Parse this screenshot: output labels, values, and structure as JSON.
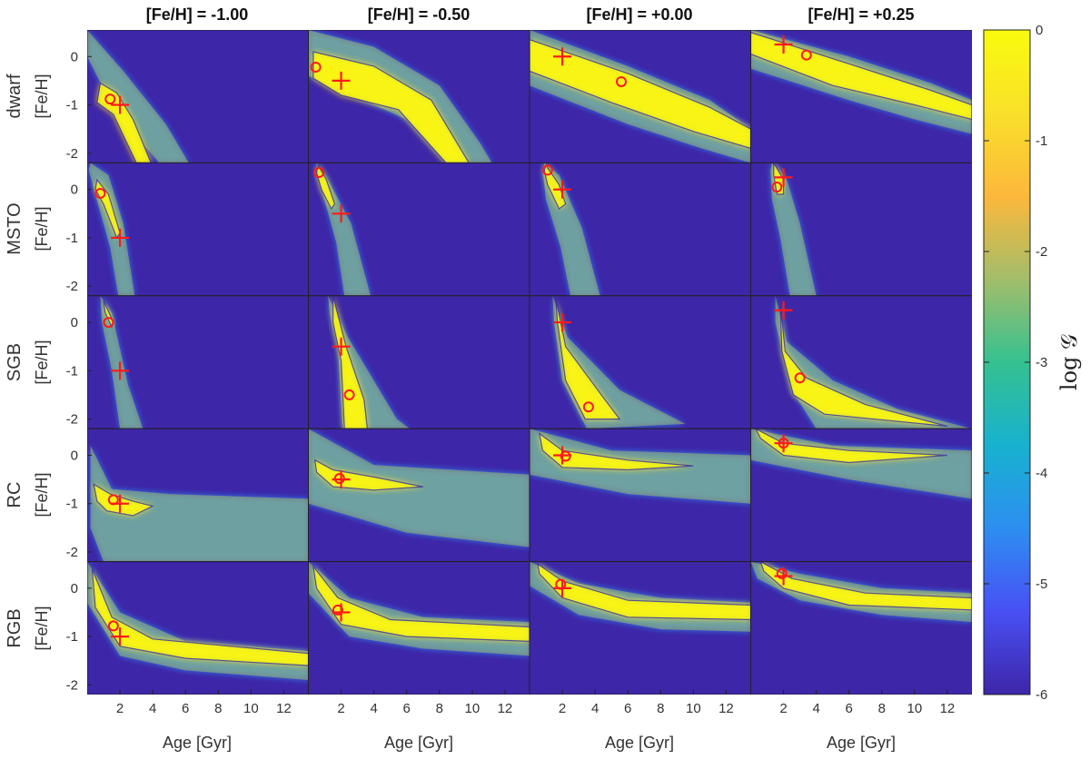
{
  "chart_data": {
    "type": "heatmap",
    "column_titles": [
      "[Fe/H] = -1.00",
      "[Fe/H] = -0.50",
      "[Fe/H] = +0.00",
      "[Fe/H] = +0.25"
    ],
    "row_labels": [
      "dwarf",
      "MSTO",
      "SGB",
      "RC",
      "RGB"
    ],
    "ylabel": "[Fe/H]",
    "xlabel": "Age [Gyr]",
    "xticks": [
      2,
      4,
      6,
      8,
      10,
      12
    ],
    "xlim": [
      0,
      13.5
    ],
    "yticks": [
      0,
      -1,
      -2
    ],
    "ylim": [
      -2.2,
      0.55
    ],
    "colorbar": {
      "label": "log 𝒢",
      "ticks": [
        0,
        -1,
        -2,
        -3,
        -4,
        -5,
        -6
      ],
      "range": [
        -6,
        0
      ],
      "colors": [
        "#3e26a8",
        "#4850f5",
        "#2d8ef0",
        "#18b1cf",
        "#35c190",
        "#a3bd6a",
        "#fcb83b",
        "#f9e02a",
        "#f9fb0e"
      ]
    },
    "marker_colors": {
      "true": "#ff1a1a",
      "estimate": "#ff1a1a",
      "contour": "#3c2c9a"
    },
    "panels": [
      {
        "row": "dwarf",
        "col": "[Fe/H] = -1.00",
        "true": [
          2.0,
          -1.0
        ],
        "estimate": [
          1.4,
          -0.88
        ]
      },
      {
        "row": "dwarf",
        "col": "[Fe/H] = -0.50",
        "true": [
          2.0,
          -0.5
        ],
        "estimate": [
          0.45,
          -0.22
        ]
      },
      {
        "row": "dwarf",
        "col": "[Fe/H] = +0.00",
        "true": [
          2.0,
          0.0
        ],
        "estimate": [
          5.6,
          -0.52
        ]
      },
      {
        "row": "dwarf",
        "col": "[Fe/H] = +0.25",
        "true": [
          2.0,
          0.25
        ],
        "estimate": [
          3.4,
          0.03
        ]
      },
      {
        "row": "MSTO",
        "col": "[Fe/H] = -1.00",
        "true": [
          2.0,
          -1.0
        ],
        "estimate": [
          0.8,
          -0.08
        ]
      },
      {
        "row": "MSTO",
        "col": "[Fe/H] = -0.50",
        "true": [
          2.0,
          -0.5
        ],
        "estimate": [
          0.65,
          0.35
        ]
      },
      {
        "row": "MSTO",
        "col": "[Fe/H] = +0.00",
        "true": [
          2.0,
          0.0
        ],
        "estimate": [
          1.1,
          0.4
        ]
      },
      {
        "row": "MSTO",
        "col": "[Fe/H] = +0.25",
        "true": [
          2.0,
          0.25
        ],
        "estimate": [
          1.6,
          0.05
        ]
      },
      {
        "row": "SGB",
        "col": "[Fe/H] = -1.00",
        "true": [
          2.0,
          -1.0
        ],
        "estimate": [
          1.3,
          0.0
        ]
      },
      {
        "row": "SGB",
        "col": "[Fe/H] = -0.50",
        "true": [
          2.0,
          -0.5
        ],
        "estimate": [
          2.5,
          -1.5
        ]
      },
      {
        "row": "SGB",
        "col": "[Fe/H] = +0.00",
        "true": [
          2.0,
          0.0
        ],
        "estimate": [
          3.6,
          -1.75
        ]
      },
      {
        "row": "SGB",
        "col": "[Fe/H] = +0.25",
        "true": [
          2.0,
          0.25
        ],
        "estimate": [
          3.0,
          -1.15
        ]
      },
      {
        "row": "RC",
        "col": "[Fe/H] = -1.00",
        "true": [
          2.0,
          -1.0
        ],
        "estimate": [
          1.6,
          -0.92
        ]
      },
      {
        "row": "RC",
        "col": "[Fe/H] = -0.50",
        "true": [
          2.0,
          -0.5
        ],
        "estimate": [
          1.9,
          -0.48
        ]
      },
      {
        "row": "RC",
        "col": "[Fe/H] = +0.00",
        "true": [
          2.0,
          0.0
        ],
        "estimate": [
          2.2,
          -0.02
        ]
      },
      {
        "row": "RC",
        "col": "[Fe/H] = +0.25",
        "true": [
          2.0,
          0.25
        ],
        "estimate": [
          2.0,
          0.25
        ]
      },
      {
        "row": "RGB",
        "col": "[Fe/H] = -1.00",
        "true": [
          2.0,
          -1.0
        ],
        "estimate": [
          1.6,
          -0.78
        ]
      },
      {
        "row": "RGB",
        "col": "[Fe/H] = -0.50",
        "true": [
          2.0,
          -0.5
        ],
        "estimate": [
          1.8,
          -0.45
        ]
      },
      {
        "row": "RGB",
        "col": "[Fe/H] = +0.00",
        "true": [
          2.0,
          0.0
        ],
        "estimate": [
          1.9,
          0.08
        ]
      },
      {
        "row": "RGB",
        "col": "[Fe/H] = +0.25",
        "true": [
          2.0,
          0.25
        ],
        "estimate": [
          1.9,
          0.3
        ]
      }
    ]
  }
}
